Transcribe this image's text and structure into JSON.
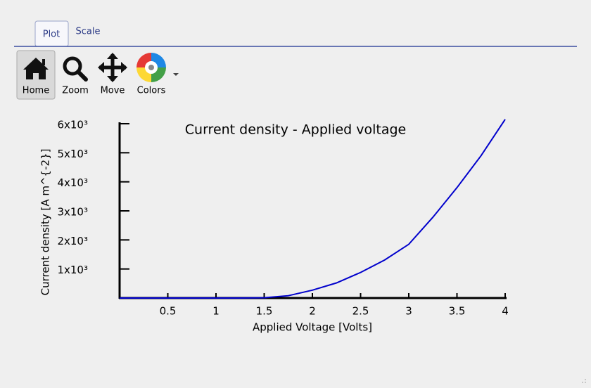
{
  "tabs": [
    "Plot",
    "Scale"
  ],
  "toolbar": [
    "Home",
    "Zoom",
    "Move",
    "Colors"
  ],
  "chart_data": {
    "type": "line",
    "title": "Current density - Applied voltage",
    "x_label": "Applied Voltage [Volts]",
    "y_label": "Current density [A m^{-2}]",
    "x": [
      0,
      0.5,
      1,
      1.25,
      1.5,
      1.75,
      2,
      2.25,
      2.5,
      2.75,
      3,
      3.25,
      3.5,
      3.75,
      4
    ],
    "values": [
      0,
      0,
      0,
      0,
      10,
      80,
      270,
      520,
      880,
      1310,
      1850,
      2780,
      3800,
      4900,
      6150
    ],
    "color": "#0000cc",
    "xlim": [
      0,
      4
    ],
    "xticks": [
      0.5,
      1,
      1.5,
      2,
      2.5,
      3,
      3.5,
      4
    ],
    "ylim": [
      0,
      6000
    ],
    "yticks": [
      {
        "value": 1000,
        "label": "1x10³"
      },
      {
        "value": 2000,
        "label": "2x10³"
      },
      {
        "value": 3000,
        "label": "3x10³"
      },
      {
        "value": 4000,
        "label": "4x10³"
      },
      {
        "value": 5000,
        "label": "5x10³"
      },
      {
        "value": 6000,
        "label": "6x10³"
      }
    ]
  }
}
